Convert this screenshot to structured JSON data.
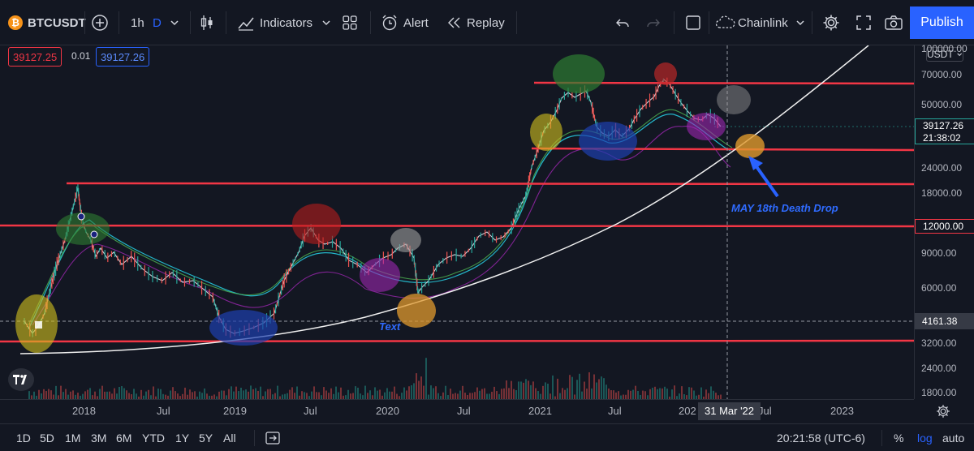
{
  "toolbar": {
    "symbol": "BTCUSDT",
    "interval_1h": "1h",
    "interval_d": "D",
    "indicators": "Indicators",
    "alert": "Alert",
    "replay": "Replay",
    "chainlink": "Chainlink",
    "publish": "Publish"
  },
  "legend": {
    "bid": "39127.25",
    "spread": "0.01",
    "ask": "39127.26"
  },
  "price_scale": {
    "currency": "USDT",
    "ticks": [
      "100000.00",
      "70000.00",
      "50000.00",
      "24000.00",
      "18000.00",
      "12000.00",
      "9000.00",
      "6000.00",
      "3200.00",
      "2400.00",
      "1800.00"
    ],
    "current_price": "39127.26",
    "countdown": "21:38:02",
    "crosshair_price": "4161.38"
  },
  "time_axis": {
    "labels": [
      "2018",
      "Jul",
      "2019",
      "Jul",
      "2020",
      "Jul",
      "2021",
      "Jul",
      "202",
      "Jul",
      "2023"
    ],
    "crosshair_date": "31 Mar '22"
  },
  "annotations": {
    "death_drop": "MAY 18th Death Drop",
    "text_label": "Text"
  },
  "bottom": {
    "ranges": [
      "1D",
      "5D",
      "1M",
      "3M",
      "6M",
      "YTD",
      "1Y",
      "5Y",
      "All"
    ],
    "clock": "20:21:58 (UTC-6)",
    "percent": "%",
    "log": "log",
    "auto": "auto"
  },
  "colors": {
    "background": "#131722",
    "accent": "#2962ff",
    "support_line": "#f23645",
    "label_red": "#f23645",
    "label_blue": "#2962ff"
  }
}
